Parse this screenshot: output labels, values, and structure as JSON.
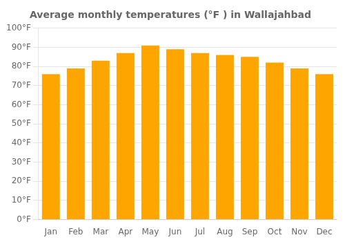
{
  "chart_data": {
    "type": "bar",
    "title": "Average monthly temperatures (°F ) in Wallajahbad",
    "categories": [
      "Jan",
      "Feb",
      "Mar",
      "Apr",
      "May",
      "Jun",
      "Jul",
      "Aug",
      "Sep",
      "Oct",
      "Nov",
      "Dec"
    ],
    "values": [
      76,
      79,
      83,
      87,
      91,
      89,
      87,
      86,
      85,
      82,
      79,
      76
    ],
    "color": "#FFA500",
    "ylim": [
      0,
      100
    ],
    "yticks": [
      {
        "value": 0,
        "label": "0°F"
      },
      {
        "value": 10,
        "label": "10°F"
      },
      {
        "value": 20,
        "label": "20°F"
      },
      {
        "value": 30,
        "label": "30°F"
      },
      {
        "value": 40,
        "label": "40°F"
      },
      {
        "value": 50,
        "label": "50°F"
      },
      {
        "value": 60,
        "label": "60°F"
      },
      {
        "value": 70,
        "label": "70°F"
      },
      {
        "value": 80,
        "label": "80°F"
      },
      {
        "value": 90,
        "label": "90°F"
      },
      {
        "value": 100,
        "label": "100°F"
      }
    ],
    "grid": true
  }
}
